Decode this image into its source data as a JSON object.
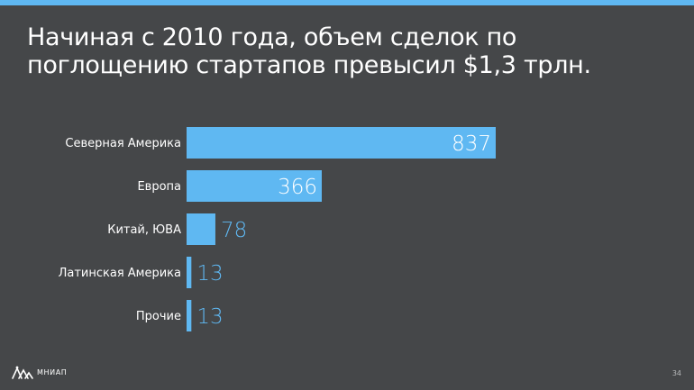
{
  "slide": {
    "title_line1": "Начиная с 2010 года, объем сделок по",
    "title_line2": "поглощению стартапов превысил $1,3 трлн.",
    "accent_color": "#5fb8f2",
    "background_color": "#454749"
  },
  "chart_data": {
    "type": "bar",
    "orientation": "horizontal",
    "categories": [
      "Северная Америка",
      "Европа",
      "Китай, ЮВА",
      "Латинская Америка",
      "Прочие"
    ],
    "values": [
      837,
      366,
      78,
      13,
      13
    ],
    "value_labels": [
      "837",
      "366",
      "78",
      "13",
      "13"
    ],
    "bar_color": "#5fb8f2",
    "xlim": [
      0,
      837
    ],
    "grid": false,
    "legend": false
  },
  "footer": {
    "logo_icon": "mniap-logo-icon",
    "org_name": "МНИАП",
    "page_number": "34"
  }
}
